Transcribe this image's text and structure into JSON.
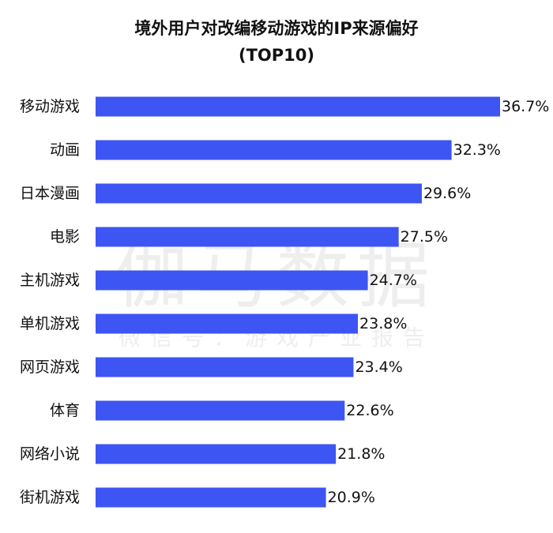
{
  "title_line1": "境外用户对改编移动游戏的IP来源偏好",
  "title_line2": "(TOP10)",
  "watermark": {
    "main": "伽马数据",
    "sub": "微信号：游戏产业报告"
  },
  "chart_data": {
    "type": "bar",
    "orientation": "horizontal",
    "title": "境外用户对改编移动游戏的IP来源偏好 (TOP10)",
    "categories": [
      "移动游戏",
      "动画",
      "日本漫画",
      "电影",
      "主机游戏",
      "单机游戏",
      "网页游戏",
      "体育",
      "网络小说",
      "街机游戏"
    ],
    "values": [
      36.7,
      32.3,
      29.6,
      27.5,
      24.7,
      23.8,
      23.4,
      22.6,
      21.8,
      20.9
    ],
    "value_labels": [
      "36.7%",
      "32.3%",
      "29.6%",
      "27.5%",
      "24.7%",
      "23.8%",
      "23.4%",
      "22.6%",
      "21.8%",
      "20.9%"
    ],
    "unit": "%",
    "xlim": [
      0,
      36.7
    ],
    "grid": false,
    "legend": "none",
    "bar_color": "#3d55f2"
  }
}
